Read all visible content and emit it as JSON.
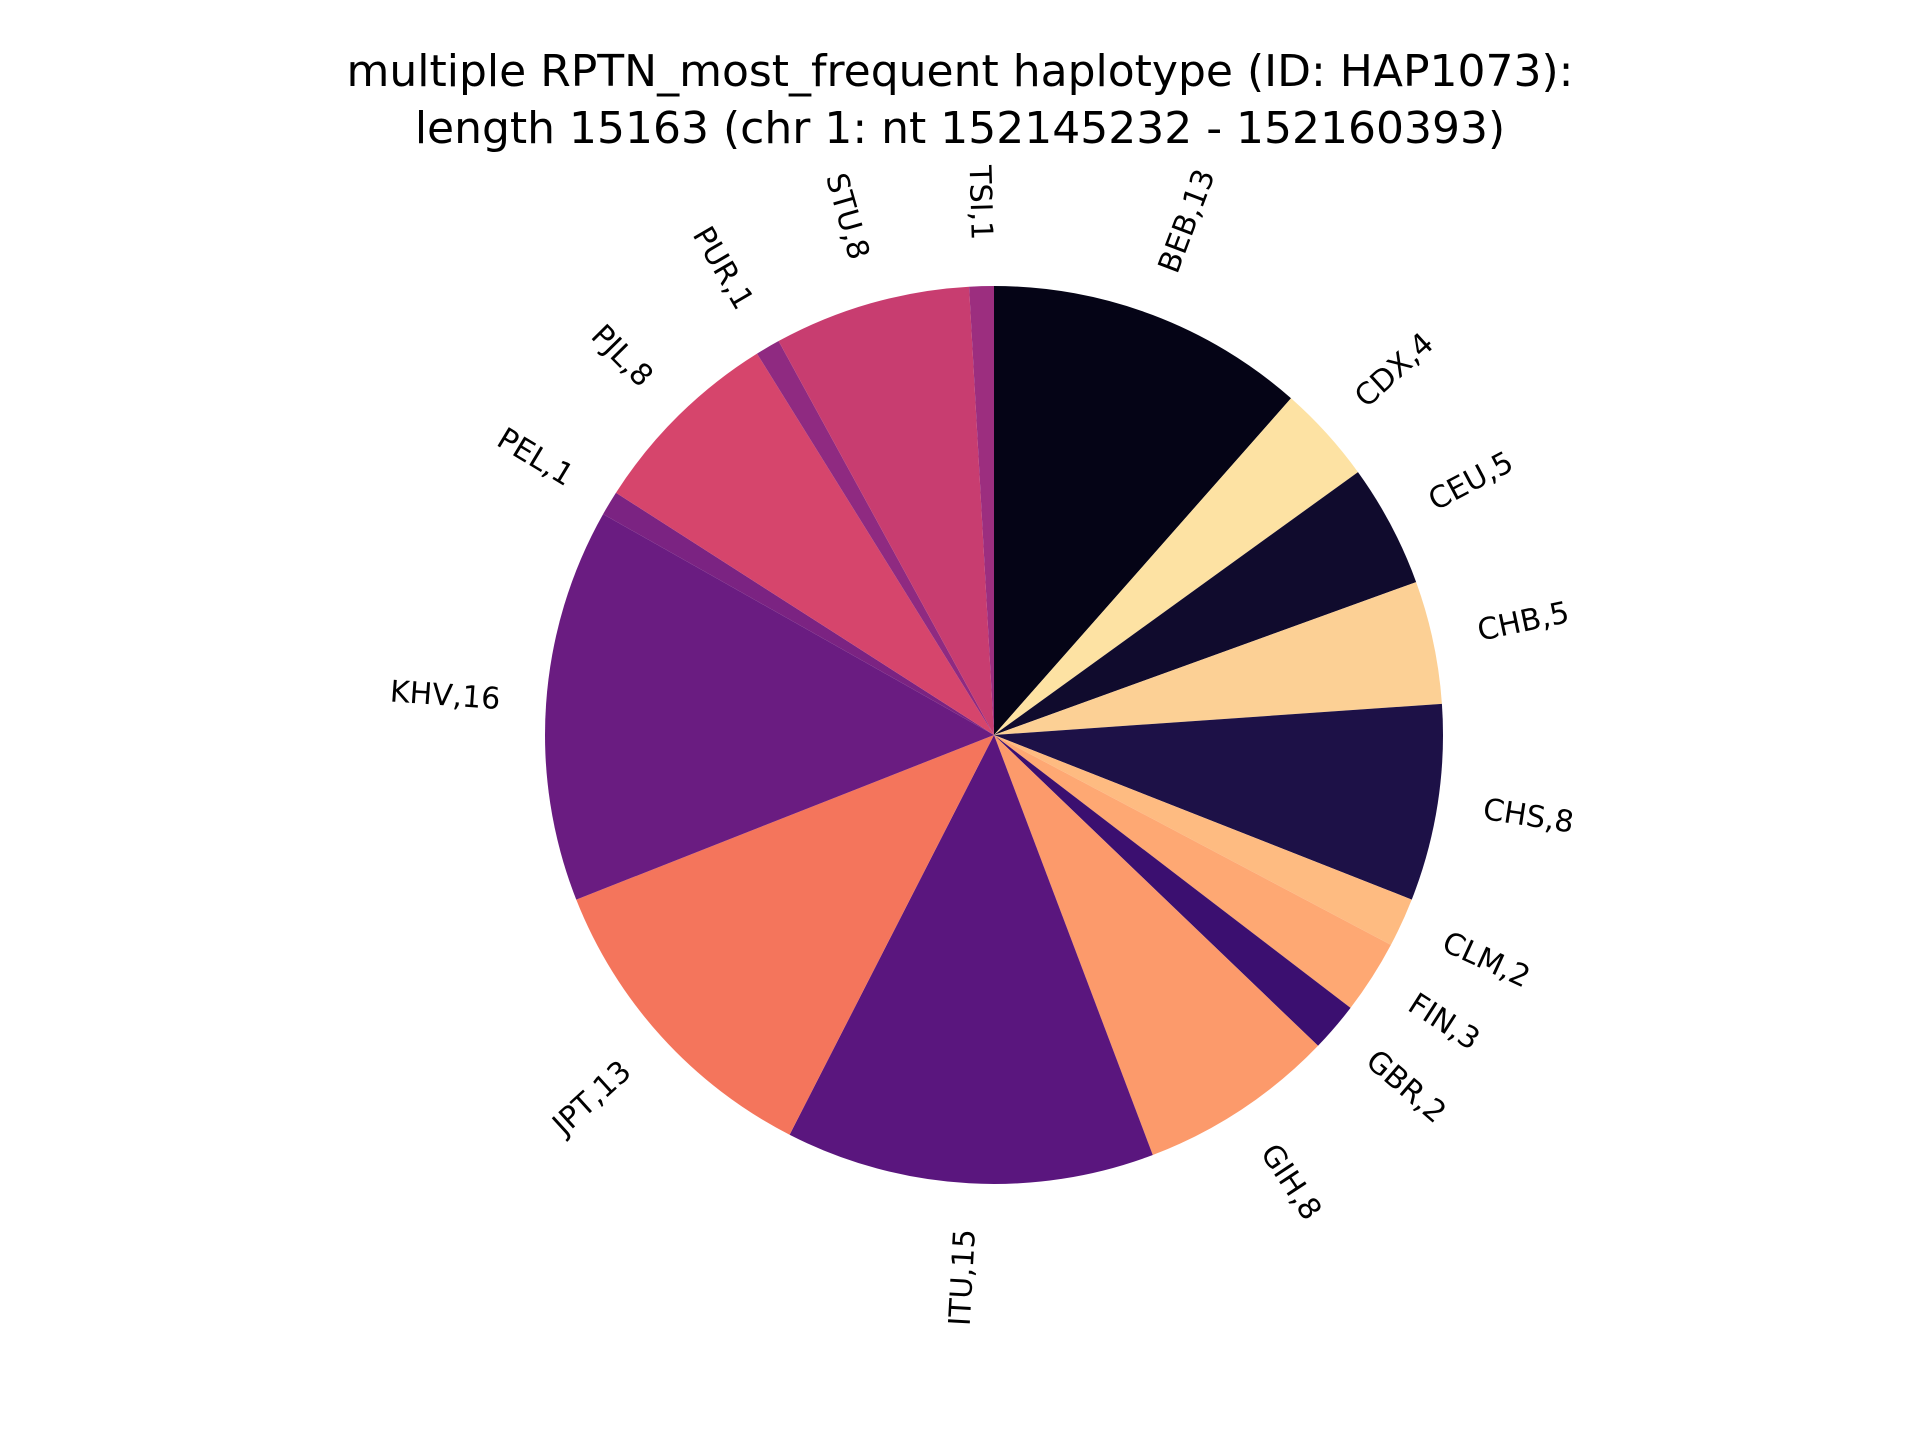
{
  "chart_data": {
    "type": "pie",
    "title_lines": [
      "multiple RPTN_most_frequent haplotype (ID: HAP1073):",
      "length 15163 (chr 1: nt 152145232 - 152160393)"
    ],
    "slices": [
      {
        "label": "BEB,13",
        "value": 13,
        "color": "#050416"
      },
      {
        "label": "CDX,4",
        "value": 4,
        "color": "#fde2a3"
      },
      {
        "label": "CEU,5",
        "value": 5,
        "color": "#100b2d"
      },
      {
        "label": "CHB,5",
        "value": 5,
        "color": "#fcd095"
      },
      {
        "label": "CHS,8",
        "value": 8,
        "color": "#1d1147"
      },
      {
        "label": "CLM,2",
        "value": 2,
        "color": "#febb81"
      },
      {
        "label": "FIN,3",
        "value": 3,
        "color": "#fea873"
      },
      {
        "label": "GBR,2",
        "value": 2,
        "color": "#3b0f70"
      },
      {
        "label": "GIH,8",
        "value": 8,
        "color": "#fc9a6b"
      },
      {
        "label": "ITU,15",
        "value": 15,
        "color": "#5a167e"
      },
      {
        "label": "JPT,13",
        "value": 13,
        "color": "#f4755c"
      },
      {
        "label": "KHV,16",
        "value": 16,
        "color": "#6a1c81"
      },
      {
        "label": "PEL,1",
        "value": 1,
        "color": "#7b2382"
      },
      {
        "label": "PJL,8",
        "value": 8,
        "color": "#d6456c"
      },
      {
        "label": "PUR,1",
        "value": 1,
        "color": "#8f2a81"
      },
      {
        "label": "STU,8",
        "value": 8,
        "color": "#c83d70"
      },
      {
        "label": "TSI,1",
        "value": 1,
        "color": "#9c2e7f"
      }
    ],
    "start": "top",
    "direction": "clockwise",
    "legend": "none",
    "labels": "outside, rotated radially"
  }
}
